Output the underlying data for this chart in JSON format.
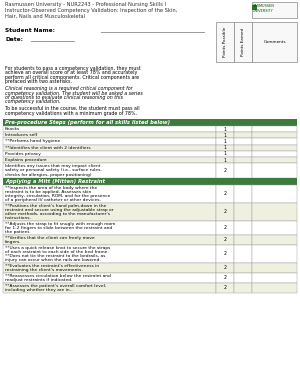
{
  "title_line1": "Rasmussen University - NUR2243 - Professional Nursing Skills I",
  "title_line2": "Instructor-Observed Competency Validation: Inspection of the Skin,",
  "title_line3": "Hair, Nails and Musculoskeletal",
  "student_label": "Student Name:",
  "date_label": "Date:",
  "intro_text1": "For students to pass a competency validation, they must achieve an overall score of at least 78% and accurately perform all critical components.  Critical components are prefaced with two asterisks.",
  "intro_text2": "Clinical reasoning is a required critical component for competency validation.  The student will be asked a series of questions to evaluate clinical reasoning on this competency validation.",
  "intro_text3": "To be successful in the course, the student must pass all competency validations with a minimum grade of 78%.",
  "section1_header": "Pre-procedure Steps (perform for all skills listed below)",
  "section1_rows": [
    [
      "Knocks",
      "1"
    ],
    [
      "Introduces self",
      "1"
    ],
    [
      "**Performs hand hygiene",
      "1"
    ],
    [
      "**Identifies the client with 2 identifiers",
      "1"
    ],
    [
      "Provides privacy",
      "1"
    ],
    [
      "Explains procedure",
      "1"
    ],
    [
      "Identifies any issues that may impact client safety or personal safety (i.e., surface rules, checks for allergies, proper positioning)",
      "2"
    ]
  ],
  "section2_header": "Applying a Mitt (Mitten) Restraint",
  "section2_rows": [
    [
      "**Inspects the area of the body where the restraint is to be applied. Assesses skin integrity, circulation, ROM, and for the presence of a peripheral IV catheter or other devices.",
      "2"
    ],
    [
      "**Positions the client's hand palm-down in the restraint and secure using the adjustable strap or other methods, according to the manufacturer's instructions.",
      "2"
    ],
    [
      "**Adjusts the strap to fit snugly with enough room for 1-2 fingers to slide between the restraint and the patient.",
      "2"
    ],
    [
      "**Verifies that the client can freely move fingers.",
      "2"
    ],
    [
      "**Uses a quick release knot to secure the straps of each restraint to each side of the bed frame. **Does not tie the restraint to the bedrails, as injury can occur when the rails are lowered.",
      "2"
    ],
    [
      "**Evaluates the restraint's effectiveness in restraining the client's movements.",
      "2"
    ],
    [
      "**Reassesses circulation below the restraint and readjust restraints if indicated.",
      "2"
    ],
    [
      "**Assesses the patient's overall comfort level, including whether they are in...",
      "2"
    ]
  ],
  "header_bg": "#3d7a3d",
  "header_fg": "#ffffff",
  "row_alt1": "#ffffff",
  "row_alt2": "#f0f0e0",
  "border_color": "#999999",
  "bg_color": "#ffffff",
  "title_color": "#333333",
  "logo_text": "RASMUSSEN\nUNIVERSITY",
  "logo_bg": "#f0f0f0",
  "logo_green": "#005500"
}
